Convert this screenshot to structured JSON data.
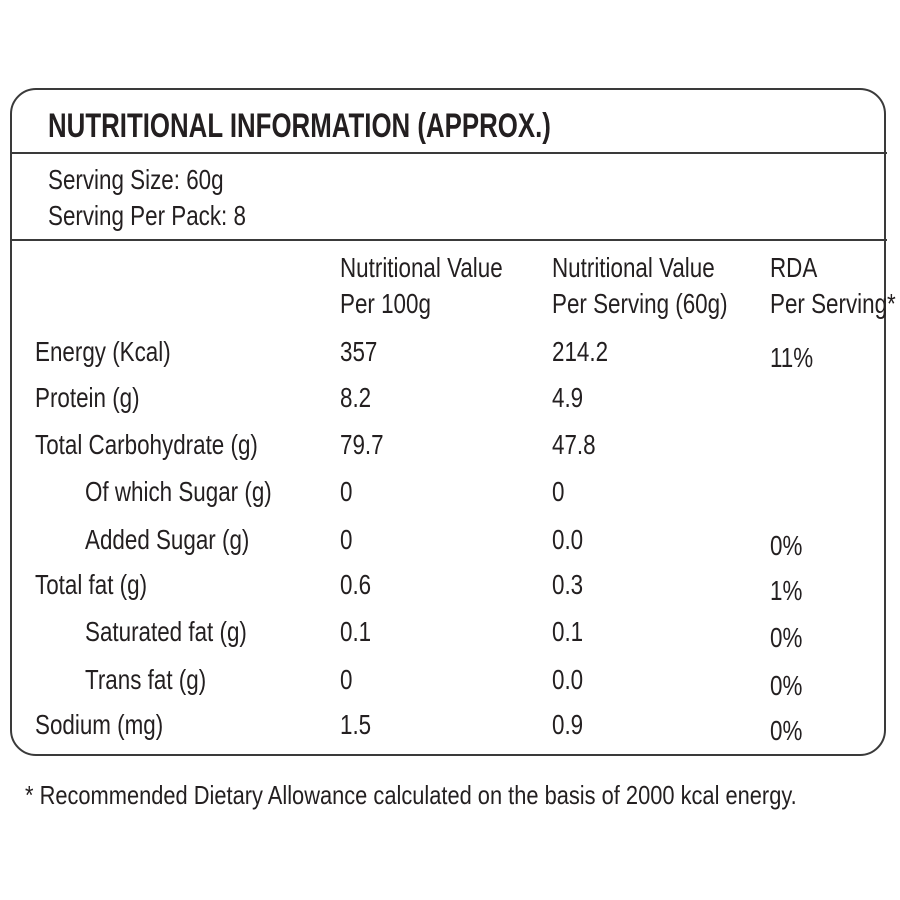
{
  "header": {
    "title": "NUTRITIONAL INFORMATION (APPROX.)",
    "serving_size": "Serving Size: 60g",
    "servings_per_pack": "Serving Per Pack: 8"
  },
  "table": {
    "columns": [
      [
        "Nutritional Value",
        "Per 100g"
      ],
      [
        "Nutritional Value",
        "Per Serving (60g)"
      ],
      [
        "RDA",
        "Per Serving*"
      ]
    ],
    "rows": [
      [
        "Energy (Kcal)",
        "357",
        "214.2",
        "11%"
      ],
      [
        "Protein (g)",
        "8.2",
        "4.9",
        null
      ],
      [
        "Total Carbohydrate (g)",
        "79.7",
        "47.8",
        null
      ],
      [
        "Of which Sugar (g)",
        "0",
        "0",
        null
      ],
      [
        "Added Sugar (g)",
        "0",
        "0.0",
        "0%"
      ],
      [
        "Total fat (g)",
        "0.6",
        "0.3",
        "1%"
      ],
      [
        "Saturated fat (g)",
        "0.1",
        "0.1",
        "0%"
      ],
      [
        "Trans fat (g)",
        "0",
        "0.0",
        "0%"
      ],
      [
        "Sodium (mg)",
        "1.5",
        "0.9",
        "0%"
      ]
    ]
  },
  "footnote": "* Recommended Dietary Allowance calculated on the basis of 2000 kcal energy."
}
